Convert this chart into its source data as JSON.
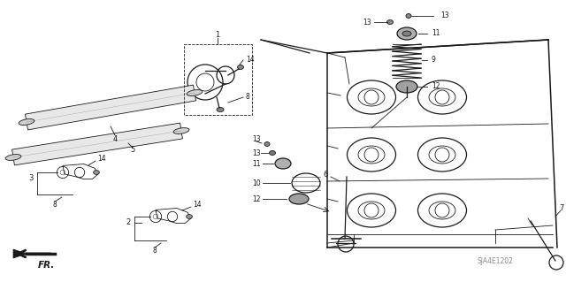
{
  "bg_color": "#ffffff",
  "line_color": "#1a1a1a",
  "fig_width": 6.4,
  "fig_height": 3.19,
  "dpi": 100,
  "watermark": "SJA4E1202",
  "fr_label": "FR."
}
